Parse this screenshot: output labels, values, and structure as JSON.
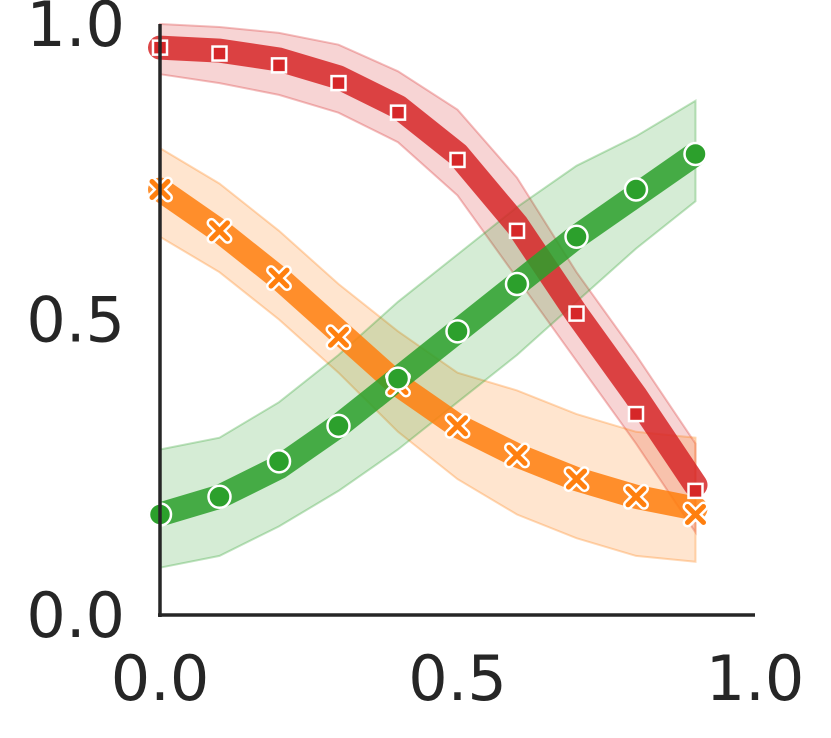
{
  "chart_data": {
    "type": "line",
    "title": "",
    "xlabel": "",
    "ylabel": "",
    "xlim": [
      0.0,
      1.0
    ],
    "ylim": [
      0.0,
      1.0
    ],
    "x_ticks": [
      "0.0",
      "0.5",
      "1.0"
    ],
    "y_ticks": [
      "0.0",
      "0.5",
      "1.0"
    ],
    "grid": false,
    "legend": "none",
    "x": [
      0.0,
      0.1,
      0.2,
      0.3,
      0.4,
      0.5,
      0.6,
      0.7,
      0.8,
      0.9
    ],
    "series": [
      {
        "color": "#d62728",
        "marker": "square",
        "line": [
          0.96,
          0.955,
          0.94,
          0.91,
          0.86,
          0.78,
          0.66,
          0.51,
          0.37,
          0.22
        ],
        "points": [
          0.96,
          0.95,
          0.93,
          0.9,
          0.85,
          0.77,
          0.65,
          0.51,
          0.34,
          0.21
        ],
        "band_upper": [
          1.0,
          0.995,
          0.985,
          0.965,
          0.92,
          0.855,
          0.74,
          0.58,
          0.44,
          0.29
        ],
        "band_lower": [
          0.915,
          0.9,
          0.88,
          0.85,
          0.8,
          0.71,
          0.57,
          0.43,
          0.29,
          0.14
        ]
      },
      {
        "color": "#ff7f0e",
        "marker": "x",
        "line": [
          0.72,
          0.65,
          0.57,
          0.48,
          0.39,
          0.32,
          0.27,
          0.23,
          0.2,
          0.18
        ],
        "points": [
          0.72,
          0.65,
          0.57,
          0.47,
          0.39,
          0.32,
          0.27,
          0.23,
          0.2,
          0.17
        ],
        "band_upper": [
          0.79,
          0.73,
          0.65,
          0.56,
          0.48,
          0.41,
          0.38,
          0.34,
          0.31,
          0.3
        ],
        "band_lower": [
          0.64,
          0.58,
          0.5,
          0.41,
          0.31,
          0.23,
          0.17,
          0.13,
          0.1,
          0.09
        ]
      },
      {
        "color": "#2ca02c",
        "marker": "circle",
        "line": [
          0.17,
          0.2,
          0.25,
          0.32,
          0.4,
          0.48,
          0.56,
          0.64,
          0.71,
          0.78
        ],
        "points": [
          0.17,
          0.2,
          0.26,
          0.32,
          0.4,
          0.48,
          0.56,
          0.64,
          0.72,
          0.78
        ],
        "band_upper": [
          0.28,
          0.3,
          0.36,
          0.44,
          0.53,
          0.61,
          0.69,
          0.76,
          0.81,
          0.87
        ],
        "band_lower": [
          0.08,
          0.1,
          0.15,
          0.21,
          0.28,
          0.36,
          0.44,
          0.53,
          0.62,
          0.7
        ]
      }
    ]
  }
}
